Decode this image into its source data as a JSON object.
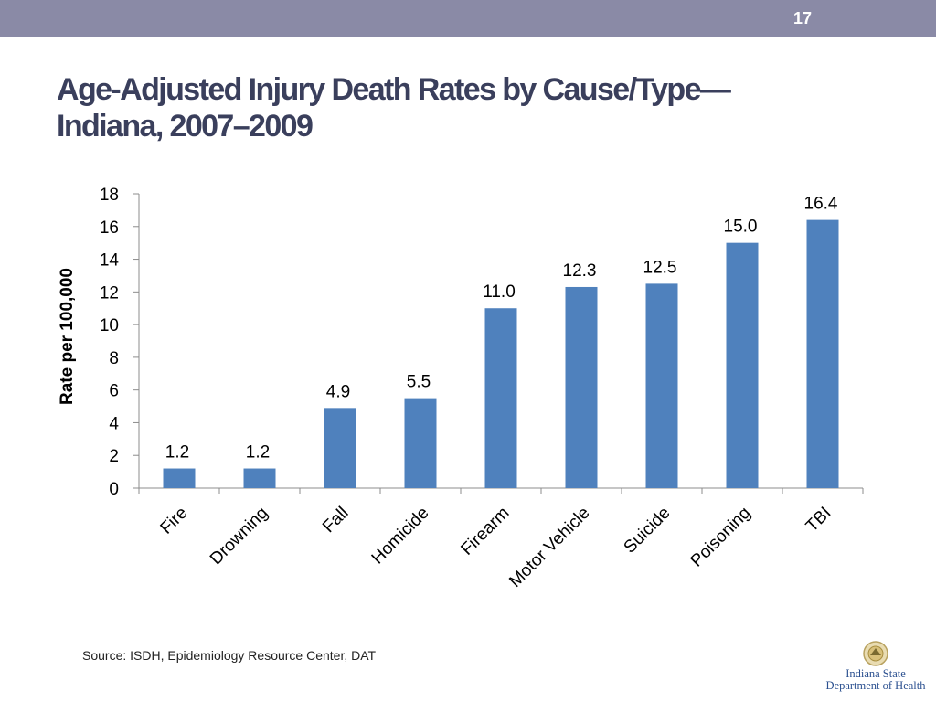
{
  "header": {
    "page_number": "17",
    "bar_color": "#8a8aa6"
  },
  "title": {
    "line1": "Age-Adjusted Injury Death Rates by Cause/Type—",
    "line2": "Indiana, 2007–2009"
  },
  "chart_data": {
    "type": "bar",
    "categories": [
      "Fire",
      "Drowning",
      "Fall",
      "Homicide",
      "Firearm",
      "Motor Vehicle",
      "Suicide",
      "Poisoning",
      "TBI"
    ],
    "values": [
      1.2,
      1.2,
      4.9,
      5.5,
      11.0,
      12.3,
      12.5,
      15.0,
      16.4
    ],
    "data_labels": [
      "1.2",
      "1.2",
      "4.9",
      "5.5",
      "11.0",
      "12.3",
      "12.5",
      "15.0",
      "16.4"
    ],
    "title": "",
    "xlabel": "",
    "ylabel": "Rate per 100,000",
    "ylim": [
      0,
      18
    ],
    "yticks": [
      0,
      2,
      4,
      6,
      8,
      10,
      12,
      14,
      16,
      18
    ],
    "ytick_labels": [
      "0",
      "2",
      "4",
      "6",
      "8",
      "10",
      "12",
      "14",
      "16",
      "18"
    ],
    "grid": false,
    "legend": "none",
    "bar_color": "#4f81bd"
  },
  "footer": {
    "source": "Source: ISDH, Epidemiology Resource Center, DAT",
    "logo_line1": "Indiana State",
    "logo_line2": "Department of Health",
    "logo_icon": "state-seal-icon"
  }
}
